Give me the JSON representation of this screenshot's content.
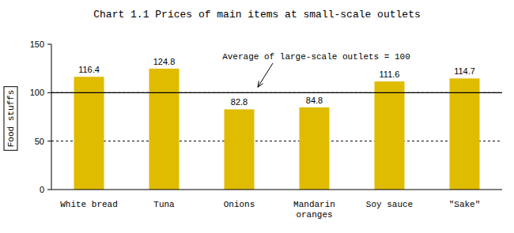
{
  "chart_data": {
    "type": "bar",
    "title": "Chart 1.1 Prices of main items at small-scale outlets",
    "ylabel": "Food stuffs",
    "categories": [
      "White bread",
      "Tuna",
      "Onions",
      "Mandarin oranges",
      "Soy sauce",
      "\"Sake\""
    ],
    "values": [
      116.4,
      124.8,
      82.8,
      84.8,
      111.6,
      114.7
    ],
    "color": "#e0bc00",
    "ylim": [
      0,
      150
    ],
    "yticks": [
      0,
      50,
      100,
      150
    ],
    "grid": true,
    "data_labels": true,
    "annotations": [
      {
        "text": "Average of large-scale outlets = 100",
        "y": 100
      }
    ]
  }
}
